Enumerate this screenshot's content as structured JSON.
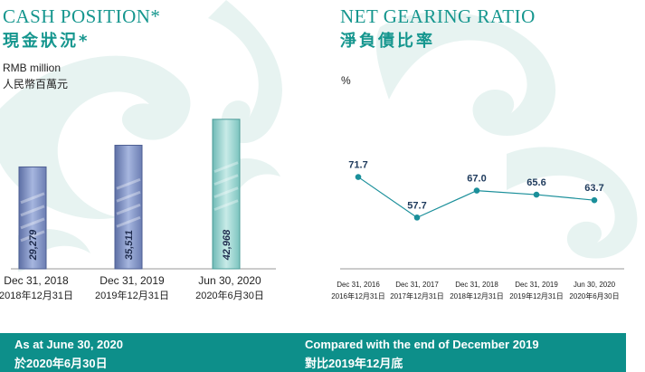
{
  "cash_section": {
    "title_en": "CASH POSITION*",
    "title_zh": "現金狀況*",
    "unit_en": "RMB million",
    "unit_zh": "人民幣百萬元"
  },
  "gearing_section": {
    "title_en": "NET GEARING RATIO",
    "title_zh": "淨負債比率",
    "unit": "%"
  },
  "footer": {
    "left_en": "As at June 30, 2020",
    "left_zh": "於2020年6月30日",
    "right_en": "Compared with the end of December 2019",
    "right_zh": "對比2019年12月底"
  },
  "colors": {
    "accent": "#15968e",
    "footer_bg": "#0d8f8a",
    "bar_blue": "#7f93c6",
    "bar_teal": "#9fd3d0",
    "line": "#1a8f9a"
  },
  "chart_data": [
    {
      "type": "bar",
      "categories": [
        "Dec 31, 2018",
        "Dec 31, 2019",
        "Jun 30, 2020"
      ],
      "categories_zh": [
        "2018年12月31日",
        "2019年12月31日",
        "2020年6月30日"
      ],
      "values": [
        29279,
        35511,
        42968
      ],
      "labels": [
        "29,279",
        "35,511",
        "42,968"
      ],
      "title": "CASH POSITION*",
      "ylabel": "RMB million",
      "ylim": [
        0,
        45000
      ]
    },
    {
      "type": "line",
      "categories": [
        "Dec 31, 2016",
        "Dec 31, 2017",
        "Dec 31, 2018",
        "Dec 31, 2019",
        "Jun 30, 2020"
      ],
      "categories_zh": [
        "2016年12月31日",
        "2017年12月31日",
        "2018年12月31日",
        "2019年12月31日",
        "2020年6月30日"
      ],
      "values": [
        71.7,
        57.7,
        67.0,
        65.6,
        63.7
      ],
      "labels": [
        "71.7",
        "57.7",
        "67.0",
        "65.6",
        "63.7"
      ],
      "title": "NET GEARING RATIO",
      "ylabel": "%",
      "ylim": [
        40,
        100
      ]
    }
  ]
}
